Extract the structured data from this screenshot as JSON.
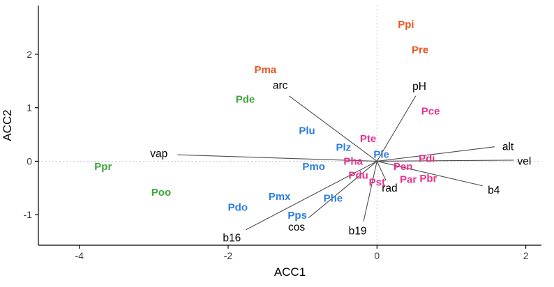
{
  "chart_data": {
    "type": "scatter",
    "subtype": "ordination-biplot",
    "title": "",
    "xlabel": "ACC1",
    "ylabel": "ACC2",
    "xlim": [
      -4.55,
      2.21
    ],
    "ylim": [
      -1.57,
      2.91
    ],
    "x_ticks": [
      -4,
      -2,
      0,
      2
    ],
    "y_ticks": [
      -1,
      0,
      1,
      2
    ],
    "grid": "off",
    "reference_lines": {
      "vertical_at_x": 0,
      "horizontal_at_y": 0,
      "style": "dotted"
    },
    "colors": {
      "orange": "#ea5420",
      "green": "#3aa63a",
      "blue": "#2b7de1",
      "magenta": "#e8308a",
      "vector_line": "#4d4d4d",
      "vector_label": "#000000",
      "axis": "#000000",
      "tick_label": "#404040",
      "reference": "#c9c9c9"
    },
    "species_points": [
      {
        "label": "Ppi",
        "x": 0.39,
        "y": 2.56,
        "group": "orange"
      },
      {
        "label": "Pre",
        "x": 0.58,
        "y": 2.08,
        "group": "orange"
      },
      {
        "label": "Pma",
        "x": -1.5,
        "y": 1.71,
        "group": "orange"
      },
      {
        "label": "Pde",
        "x": -1.77,
        "y": 1.16,
        "group": "green"
      },
      {
        "label": "Ppr",
        "x": -3.68,
        "y": -0.1,
        "group": "green"
      },
      {
        "label": "Poo",
        "x": -2.9,
        "y": -0.58,
        "group": "green"
      },
      {
        "label": "Plu",
        "x": -0.94,
        "y": 0.57,
        "group": "blue"
      },
      {
        "label": "Plz",
        "x": -0.45,
        "y": 0.26,
        "group": "blue"
      },
      {
        "label": "Pmo",
        "x": -0.85,
        "y": -0.1,
        "group": "blue"
      },
      {
        "label": "Pmx",
        "x": -1.31,
        "y": -0.66,
        "group": "blue"
      },
      {
        "label": "Pdo",
        "x": -1.87,
        "y": -0.86,
        "group": "blue"
      },
      {
        "label": "Pps",
        "x": -1.07,
        "y": -1.01,
        "group": "blue"
      },
      {
        "label": "Phe",
        "x": -0.59,
        "y": -0.69,
        "group": "blue"
      },
      {
        "label": "Ple",
        "x": 0.06,
        "y": 0.13,
        "group": "blue"
      },
      {
        "label": "Pce",
        "x": 0.72,
        "y": 0.94,
        "group": "magenta"
      },
      {
        "label": "Pte",
        "x": -0.12,
        "y": 0.42,
        "group": "magenta"
      },
      {
        "label": "Pha",
        "x": -0.32,
        "y": 0.0,
        "group": "magenta"
      },
      {
        "label": "Pdi",
        "x": 0.67,
        "y": 0.05,
        "group": "magenta"
      },
      {
        "label": "Pen",
        "x": 0.35,
        "y": -0.1,
        "group": "magenta"
      },
      {
        "label": "Pdu",
        "x": -0.25,
        "y": -0.26,
        "group": "magenta"
      },
      {
        "label": "Pst",
        "x": 0.0,
        "y": -0.39,
        "group": "magenta"
      },
      {
        "label": "Par",
        "x": 0.42,
        "y": -0.34,
        "group": "magenta"
      },
      {
        "label": "Pbr",
        "x": 0.69,
        "y": -0.32,
        "group": "magenta"
      }
    ],
    "vectors": [
      {
        "label": "arc",
        "x": -1.18,
        "y": 1.22,
        "label_x": -1.3,
        "label_y": 1.42
      },
      {
        "label": "pH",
        "x": 0.52,
        "y": 1.22,
        "label_x": 0.57,
        "label_y": 1.4
      },
      {
        "label": "vap",
        "x": -2.68,
        "y": 0.12,
        "label_x": -2.93,
        "label_y": 0.14
      },
      {
        "label": "alt",
        "x": 1.58,
        "y": 0.27,
        "label_x": 1.76,
        "label_y": 0.27
      },
      {
        "label": "vel",
        "x": 1.84,
        "y": 0.02,
        "label_x": 1.98,
        "label_y": 0.0
      },
      {
        "label": "b4",
        "x": 1.42,
        "y": -0.46,
        "label_x": 1.57,
        "label_y": -0.54
      },
      {
        "label": "rad",
        "x": 0.12,
        "y": -0.36,
        "label_x": 0.17,
        "label_y": -0.5
      },
      {
        "label": "b19",
        "x": -0.18,
        "y": -1.12,
        "label_x": -0.26,
        "label_y": -1.3
      },
      {
        "label": "cos",
        "x": -0.92,
        "y": -1.06,
        "label_x": -1.08,
        "label_y": -1.23
      },
      {
        "label": "b16",
        "x": -1.76,
        "y": -1.28,
        "label_x": -1.95,
        "label_y": -1.43
      }
    ]
  }
}
